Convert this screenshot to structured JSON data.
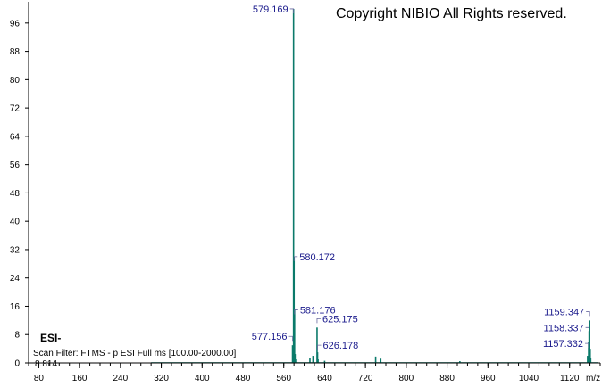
{
  "copyright": "Copyright NIBIO All Rights reserved.",
  "ionization_mode": "ESI-",
  "scan_filter": "Scan Filter: FTMS - p ESI Full ms [100.00-2000.00]",
  "base_value": "8.814",
  "colors": {
    "peak": "#0b7a6a",
    "label": "#1a1a8c",
    "axis": "#000000"
  },
  "chart_data": {
    "type": "bar",
    "title": "",
    "xlabel": "m/z",
    "ylabel": "",
    "xlim": [
      60,
      1180
    ],
    "ylim": [
      0,
      102
    ],
    "xticks": [
      80,
      160,
      240,
      320,
      400,
      480,
      560,
      640,
      720,
      800,
      880,
      960,
      1040,
      1120
    ],
    "yticks": [
      0,
      8,
      16,
      24,
      32,
      40,
      48,
      56,
      64,
      72,
      80,
      88,
      96
    ],
    "peaks": [
      {
        "mz": 577.156,
        "intensity": 5
      },
      {
        "mz": 578.16,
        "intensity": 2
      },
      {
        "mz": 579.169,
        "intensity": 100
      },
      {
        "mz": 580.172,
        "intensity": 30
      },
      {
        "mz": 581.176,
        "intensity": 15
      },
      {
        "mz": 582.18,
        "intensity": 2.5
      },
      {
        "mz": 583.18,
        "intensity": 1
      },
      {
        "mz": 611.2,
        "intensity": 1.5
      },
      {
        "mz": 617.2,
        "intensity": 2
      },
      {
        "mz": 625.175,
        "intensity": 10
      },
      {
        "mz": 626.178,
        "intensity": 3
      },
      {
        "mz": 627.18,
        "intensity": 1
      },
      {
        "mz": 640.0,
        "intensity": 0.6
      },
      {
        "mz": 740.0,
        "intensity": 1.8
      },
      {
        "mz": 750.0,
        "intensity": 1.2
      },
      {
        "mz": 905.0,
        "intensity": 0.5
      },
      {
        "mz": 1155.3,
        "intensity": 2
      },
      {
        "mz": 1157.332,
        "intensity": 6
      },
      {
        "mz": 1158.337,
        "intensity": 9
      },
      {
        "mz": 1159.347,
        "intensity": 12
      },
      {
        "mz": 1160.35,
        "intensity": 4
      },
      {
        "mz": 1161.35,
        "intensity": 1.5
      }
    ],
    "labels": [
      {
        "mz": 579.169,
        "text": "579.169",
        "y": 100,
        "side": "left"
      },
      {
        "mz": 580.172,
        "text": "580.172",
        "y": 30,
        "side": "right"
      },
      {
        "mz": 581.176,
        "text": "581.176",
        "y": 15,
        "side": "right"
      },
      {
        "mz": 577.156,
        "text": "577.156",
        "y": 7.5,
        "side": "left"
      },
      {
        "mz": 625.175,
        "text": "625.175",
        "y": 12.5,
        "side": "right"
      },
      {
        "mz": 626.178,
        "text": "626.178",
        "y": 5,
        "side": "right"
      },
      {
        "mz": 1159.347,
        "text": "1159.347",
        "y": 14.5,
        "side": "left"
      },
      {
        "mz": 1158.337,
        "text": "1158.337",
        "y": 10,
        "side": "left"
      },
      {
        "mz": 1157.332,
        "text": "1157.332",
        "y": 5.5,
        "side": "left"
      }
    ]
  }
}
